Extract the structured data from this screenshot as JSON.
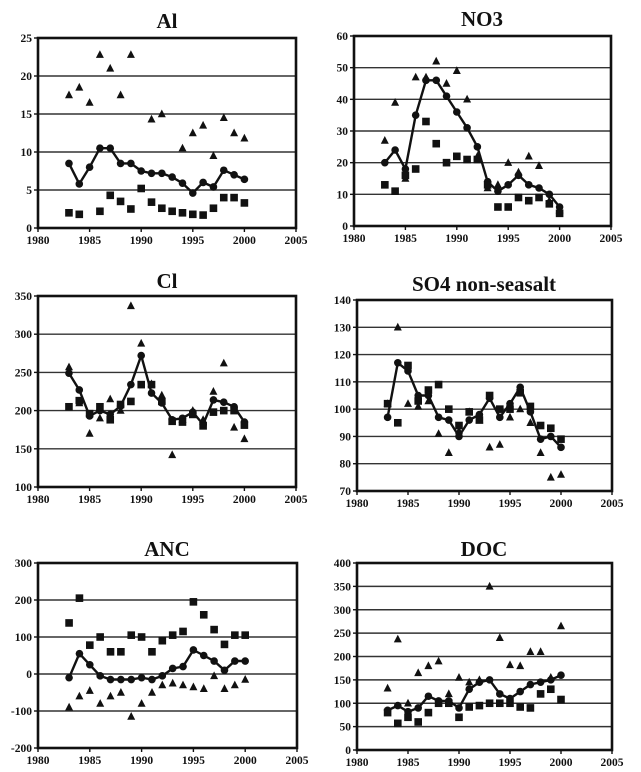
{
  "chart_data": [
    {
      "type": "scatter",
      "title": "Al",
      "xlim": [
        1980,
        2005
      ],
      "ylim": [
        0,
        25
      ],
      "xticks": [
        "1980",
        "1985",
        "1990",
        "1995",
        "2000",
        "2005"
      ],
      "yticks": [
        "0",
        "5",
        "10",
        "15",
        "20",
        "25"
      ],
      "grid": true,
      "series": [
        {
          "marker": "triangle",
          "line": false,
          "x": [
            1983,
            1984,
            1985,
            1986,
            1987,
            1988,
            1989,
            1991,
            1992,
            1994,
            1995,
            1996,
            1997,
            1998,
            1999,
            2000
          ],
          "y": [
            17.5,
            18.5,
            16.5,
            22.8,
            21,
            17.5,
            22.8,
            14.3,
            15,
            10.5,
            12.5,
            13.5,
            9.5,
            14.5,
            12.5,
            11.8
          ]
        },
        {
          "marker": "circle",
          "line": true,
          "x": [
            1983,
            1984,
            1985,
            1986,
            1987,
            1988,
            1989,
            1990,
            1991,
            1992,
            1993,
            1994,
            1995,
            1996,
            1997,
            1998,
            1999,
            2000
          ],
          "y": [
            8.5,
            5.8,
            8,
            10.5,
            10.5,
            8.5,
            8.5,
            7.5,
            7.2,
            7.2,
            6.7,
            5.9,
            4.6,
            6,
            5.4,
            7.6,
            7,
            6.4
          ]
        },
        {
          "marker": "square",
          "line": false,
          "x": [
            1983,
            1984,
            1986,
            1987,
            1988,
            1989,
            1990,
            1991,
            1992,
            1993,
            1994,
            1995,
            1996,
            1997,
            1998,
            1999,
            2000
          ],
          "y": [
            2,
            1.8,
            2.2,
            4.3,
            3.5,
            2.5,
            5.2,
            3.4,
            2.6,
            2.2,
            2,
            1.8,
            1.7,
            2.6,
            4,
            4,
            3.3
          ]
        }
      ]
    },
    {
      "type": "scatter",
      "title": "NO3",
      "xlim": [
        1980,
        2005
      ],
      "ylim": [
        0,
        60
      ],
      "xticks": [
        "1980",
        "1985",
        "1990",
        "1995",
        "2000",
        "2005"
      ],
      "yticks": [
        "0",
        "10",
        "20",
        "30",
        "40",
        "50",
        "60"
      ],
      "grid": true,
      "series": [
        {
          "marker": "triangle",
          "line": false,
          "x": [
            1983,
            1984,
            1985,
            1986,
            1987,
            1988,
            1989,
            1990,
            1991,
            1992,
            1993,
            1994,
            1995,
            1996,
            1997,
            1998,
            1999,
            2000
          ],
          "y": [
            27,
            39,
            15,
            47,
            47,
            52,
            45,
            49,
            40,
            22,
            12,
            13,
            20,
            17,
            22,
            19,
            8,
            5
          ]
        },
        {
          "marker": "circle",
          "line": true,
          "x": [
            1983,
            1984,
            1985,
            1986,
            1987,
            1988,
            1989,
            1990,
            1991,
            1992,
            1993,
            1994,
            1995,
            1996,
            1997,
            1998,
            1999,
            2000
          ],
          "y": [
            20,
            24,
            18,
            35,
            46,
            46,
            41,
            36,
            31,
            25,
            14,
            11,
            13,
            16,
            13,
            12,
            10,
            6
          ]
        },
        {
          "marker": "square",
          "line": false,
          "x": [
            1983,
            1984,
            1985,
            1986,
            1987,
            1988,
            1989,
            1990,
            1991,
            1992,
            1993,
            1994,
            1995,
            1996,
            1997,
            1998,
            1999,
            2000
          ],
          "y": [
            13,
            11,
            16,
            18,
            33,
            26,
            20,
            22,
            21,
            21,
            13,
            6,
            6,
            9,
            8,
            9,
            7,
            4
          ]
        }
      ]
    },
    {
      "type": "scatter",
      "title": "Cl",
      "xlim": [
        1980,
        2005
      ],
      "ylim": [
        100,
        350
      ],
      "xticks": [
        "1980",
        "1985",
        "1990",
        "1995",
        "2000",
        "2005"
      ],
      "yticks": [
        "100",
        "150",
        "200",
        "250",
        "300",
        "350"
      ],
      "grid": true,
      "series": [
        {
          "marker": "triangle",
          "line": false,
          "x": [
            1983,
            1984,
            1985,
            1986,
            1987,
            1988,
            1989,
            1990,
            1991,
            1992,
            1993,
            1994,
            1995,
            1996,
            1997,
            1998,
            1999,
            2000
          ],
          "y": [
            257,
            210,
            170,
            190,
            215,
            200,
            337,
            288,
            235,
            220,
            142,
            188,
            200,
            188,
            225,
            262,
            178,
            163
          ]
        },
        {
          "marker": "circle",
          "line": true,
          "x": [
            1983,
            1984,
            1985,
            1986,
            1987,
            1988,
            1989,
            1990,
            1991,
            1992,
            1993,
            1994,
            1995,
            1996,
            1997,
            1998,
            1999,
            2000
          ],
          "y": [
            249,
            227,
            193,
            200,
            195,
            206,
            234,
            272,
            223,
            210,
            188,
            190,
            198,
            182,
            214,
            211,
            205,
            185
          ]
        },
        {
          "marker": "square",
          "line": false,
          "x": [
            1983,
            1984,
            1985,
            1986,
            1987,
            1988,
            1989,
            1990,
            1991,
            1992,
            1993,
            1994,
            1995,
            1996,
            1997,
            1998,
            1999,
            2000
          ],
          "y": [
            205,
            213,
            196,
            205,
            188,
            208,
            212,
            234,
            234,
            212,
            186,
            185,
            195,
            180,
            198,
            200,
            200,
            181
          ]
        }
      ]
    },
    {
      "type": "scatter",
      "title": "SO4 non-seasalt",
      "xlim": [
        1980,
        2005
      ],
      "ylim": [
        70,
        140
      ],
      "xticks": [
        "1980",
        "1985",
        "1990",
        "1995",
        "2000",
        "2005"
      ],
      "yticks": [
        "70",
        "80",
        "90",
        "100",
        "110",
        "120",
        "130",
        "140"
      ],
      "grid": true,
      "series": [
        {
          "marker": "triangle",
          "line": false,
          "x": [
            1983,
            1984,
            1985,
            1986,
            1987,
            1988,
            1989,
            1990,
            1991,
            1992,
            1993,
            1994,
            1995,
            1996,
            1997,
            1998,
            1999,
            2000
          ],
          "y": [
            102,
            130,
            102,
            101,
            103,
            91,
            84,
            92,
            99,
            96,
            86,
            87,
            97,
            100,
            95,
            84,
            75,
            76
          ]
        },
        {
          "marker": "circle",
          "line": true,
          "x": [
            1983,
            1984,
            1985,
            1986,
            1987,
            1988,
            1989,
            1990,
            1991,
            1992,
            1993,
            1994,
            1995,
            1996,
            1997,
            1998,
            1999,
            2000
          ],
          "y": [
            97,
            117,
            114,
            105,
            105,
            97,
            96,
            90,
            96,
            98,
            104,
            97,
            102,
            108,
            99,
            89,
            90,
            86
          ]
        },
        {
          "marker": "square",
          "line": false,
          "x": [
            1983,
            1984,
            1985,
            1986,
            1987,
            1988,
            1989,
            1990,
            1991,
            1992,
            1993,
            1994,
            1995,
            1996,
            1997,
            1998,
            1999,
            2000
          ],
          "y": [
            102,
            95,
            116,
            103,
            107,
            109,
            100,
            94,
            99,
            96,
            105,
            100,
            100,
            106,
            101,
            94,
            93,
            89
          ]
        }
      ]
    },
    {
      "type": "scatter",
      "title": "ANC",
      "xlim": [
        1980,
        2005
      ],
      "ylim": [
        -200,
        300
      ],
      "xticks": [
        "1980",
        "1985",
        "1990",
        "1995",
        "2000",
        "2005"
      ],
      "yticks": [
        "-200",
        "-100",
        "0",
        "100",
        "200",
        "300"
      ],
      "grid": true,
      "series": [
        {
          "marker": "triangle",
          "line": false,
          "x": [
            1983,
            1984,
            1985,
            1986,
            1987,
            1988,
            1989,
            1990,
            1991,
            1992,
            1993,
            1994,
            1995,
            1996,
            1997,
            1998,
            1999,
            2000
          ],
          "y": [
            -90,
            -60,
            -45,
            -80,
            -60,
            -50,
            -115,
            -80,
            -50,
            -30,
            -25,
            -30,
            -35,
            -40,
            -5,
            -40,
            -30,
            -15
          ]
        },
        {
          "marker": "circle",
          "line": true,
          "x": [
            1983,
            1984,
            1985,
            1986,
            1987,
            1988,
            1989,
            1990,
            1991,
            1992,
            1993,
            1994,
            1995,
            1996,
            1997,
            1998,
            1999,
            2000
          ],
          "y": [
            -10,
            55,
            25,
            -5,
            -15,
            -15,
            -15,
            -10,
            -15,
            -5,
            15,
            20,
            65,
            50,
            35,
            10,
            35,
            35
          ]
        },
        {
          "marker": "square",
          "line": false,
          "x": [
            1983,
            1984,
            1985,
            1986,
            1987,
            1988,
            1989,
            1990,
            1991,
            1992,
            1993,
            1994,
            1995,
            1996,
            1997,
            1998,
            1999,
            2000
          ],
          "y": [
            138,
            205,
            78,
            100,
            60,
            60,
            105,
            100,
            60,
            90,
            105,
            115,
            195,
            160,
            120,
            80,
            105,
            105
          ]
        }
      ]
    },
    {
      "type": "scatter",
      "title": "DOC",
      "xlim": [
        1980,
        2005
      ],
      "ylim": [
        0,
        400
      ],
      "xticks": [
        "1980",
        "1985",
        "1990",
        "1995",
        "2000",
        "2005"
      ],
      "yticks": [
        "0",
        "50",
        "100",
        "150",
        "200",
        "250",
        "300",
        "350",
        "400"
      ],
      "grid": true,
      "series": [
        {
          "marker": "triangle",
          "line": false,
          "x": [
            1983,
            1984,
            1985,
            1986,
            1987,
            1988,
            1989,
            1990,
            1991,
            1992,
            1993,
            1994,
            1995,
            1996,
            1997,
            1998,
            1999,
            2000
          ],
          "y": [
            132,
            237,
            100,
            165,
            180,
            190,
            120,
            155,
            145,
            150,
            350,
            240,
            182,
            180,
            210,
            210,
            155,
            265
          ]
        },
        {
          "marker": "circle",
          "line": true,
          "x": [
            1983,
            1984,
            1985,
            1986,
            1987,
            1988,
            1989,
            1990,
            1991,
            1992,
            1993,
            1994,
            1995,
            1996,
            1997,
            1998,
            1999,
            2000
          ],
          "y": [
            85,
            95,
            82,
            90,
            115,
            105,
            105,
            90,
            130,
            145,
            150,
            120,
            110,
            125,
            140,
            145,
            150,
            160
          ]
        },
        {
          "marker": "square",
          "line": false,
          "x": [
            1983,
            1984,
            1985,
            1986,
            1987,
            1988,
            1989,
            1990,
            1991,
            1992,
            1993,
            1994,
            1995,
            1996,
            1997,
            1998,
            1999,
            2000
          ],
          "y": [
            80,
            57,
            70,
            60,
            80,
            100,
            100,
            70,
            92,
            95,
            100,
            100,
            100,
            92,
            90,
            120,
            130,
            108
          ]
        }
      ]
    }
  ]
}
